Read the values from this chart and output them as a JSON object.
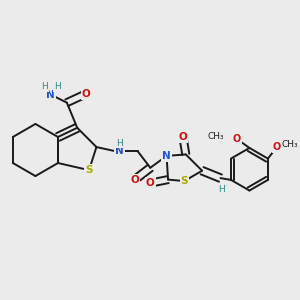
{
  "background_color": "#ebebeb",
  "atom_colors": {
    "C": "#1a1a1a",
    "N": "#2255cc",
    "O": "#cc1111",
    "S": "#aaaa00",
    "H": "#338888"
  },
  "bond_color": "#1a1a1a",
  "bond_lw": 1.4,
  "figsize": [
    3.0,
    3.0
  ],
  "dpi": 100
}
